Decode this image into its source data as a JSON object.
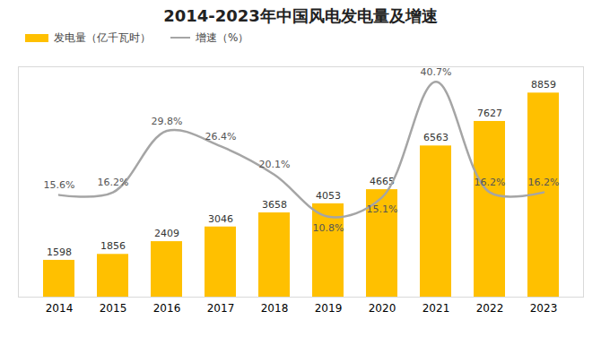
{
  "chart_data": {
    "type": "bar",
    "title": "2014-2023年中国风电发电量及增速",
    "categories": [
      "2014",
      "2015",
      "2016",
      "2017",
      "2018",
      "2019",
      "2020",
      "2021",
      "2022",
      "2023"
    ],
    "series": [
      {
        "name": "发电量（亿千瓦时）",
        "type": "bar",
        "color": "#FFC000",
        "values": [
          1598,
          1856,
          2409,
          3046,
          3658,
          4053,
          4665,
          6563,
          7627,
          8859
        ]
      },
      {
        "name": "增速（%）",
        "type": "line",
        "axis": "y2",
        "color": "#A5A5A5",
        "marker": "none",
        "line_style": "solid",
        "values": [
          15.6,
          16.2,
          29.8,
          26.4,
          20.1,
          10.8,
          15.1,
          40.7,
          16.2,
          16.2
        ],
        "value_labels": [
          "15.6%",
          "16.2%",
          "29.8%",
          "26.4%",
          "20.1%",
          "10.8%",
          "15.1%",
          "40.7%",
          "16.2%",
          "16.2%"
        ]
      }
    ],
    "ylim": [
      0,
      10000
    ],
    "y2lim": [
      -7,
      44
    ],
    "data_labels": true,
    "tick_labels": "x",
    "legend": "top"
  }
}
